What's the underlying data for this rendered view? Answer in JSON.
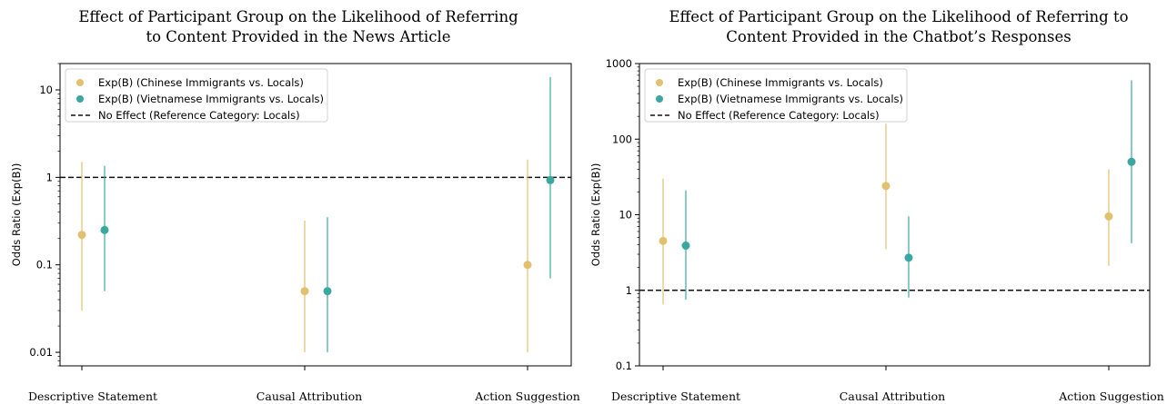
{
  "chart_data": [
    {
      "type": "scatter",
      "title": [
        "Effect of Participant Group on the Likelihood of Referring",
        "to Content Provided in the News Article"
      ],
      "ylabel": "Odds Ratio (Exp(B))",
      "yscale": "log",
      "ylim": [
        0.007,
        20
      ],
      "yticks": [
        0.01,
        0.1,
        1,
        10
      ],
      "ytick_labels": [
        "0.01",
        "0.1",
        "1",
        "10"
      ],
      "categories": [
        "Descriptive Statement",
        "Causal Attribution",
        "Action Suggestion"
      ],
      "reference_line": 1,
      "legend_position": "top-left",
      "legend": [
        "Exp(B) (Chinese Immigrants vs. Locals)",
        "Exp(B) (Vietnamese Immigrants vs. Locals)",
        "No Effect (Reference Category: Locals)"
      ],
      "series": [
        {
          "name": "Exp(B) (Chinese Immigrants vs. Locals)",
          "color": "#e3c06f",
          "values": [
            0.22,
            0.05,
            0.1
          ],
          "lower": [
            0.03,
            0.01,
            0.01
          ],
          "upper": [
            1.5,
            0.32,
            1.6
          ]
        },
        {
          "name": "Exp(B) (Vietnamese Immigrants vs. Locals)",
          "color": "#3aa8a0",
          "values": [
            0.25,
            0.05,
            0.93
          ],
          "lower": [
            0.05,
            0.01,
            0.07
          ],
          "upper": [
            1.35,
            0.35,
            14
          ]
        }
      ]
    },
    {
      "type": "scatter",
      "title": [
        "Effect of Participant Group on the Likelihood of Referring to",
        "Content Provided in the Chatbot’s Responses"
      ],
      "ylabel": "Odds Ratio (Exp(B))",
      "yscale": "log",
      "ylim": [
        0.1,
        1000
      ],
      "yticks": [
        0.1,
        1,
        10,
        100,
        1000
      ],
      "ytick_labels": [
        "0.1",
        "1",
        "10",
        "100",
        "1000"
      ],
      "categories": [
        "Descriptive Statement",
        "Causal Attribution",
        "Action Suggestion"
      ],
      "reference_line": 1,
      "legend_position": "top-left",
      "legend": [
        "Exp(B) (Chinese Immigrants vs. Locals)",
        "Exp(B) (Vietnamese Immigrants vs. Locals)",
        "No Effect (Reference Category: Locals)"
      ],
      "series": [
        {
          "name": "Exp(B) (Chinese Immigrants vs. Locals)",
          "color": "#e3c06f",
          "values": [
            4.5,
            24,
            9.5
          ],
          "lower": [
            0.65,
            3.5,
            2.1
          ],
          "upper": [
            30,
            160,
            40
          ]
        },
        {
          "name": "Exp(B) (Vietnamese Immigrants vs. Locals)",
          "color": "#3aa8a0",
          "values": [
            3.9,
            2.7,
            50
          ],
          "lower": [
            0.75,
            0.8,
            4.2
          ],
          "upper": [
            21,
            9.5,
            600
          ]
        }
      ]
    }
  ]
}
